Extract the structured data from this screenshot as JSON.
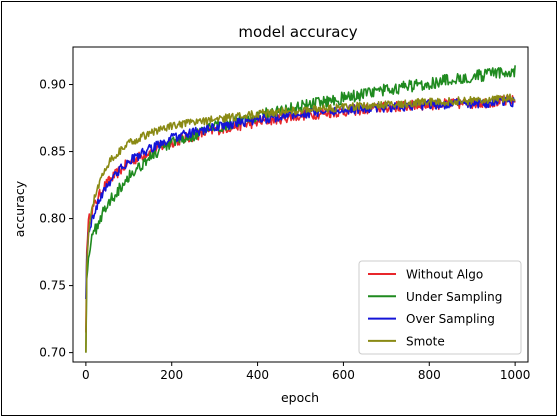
{
  "chart_data": {
    "type": "line",
    "title": "model accuracy",
    "xlabel": "epoch",
    "ylabel": "accuracy",
    "xlim": [
      -30,
      1030
    ],
    "ylim": [
      0.693,
      0.928
    ],
    "xticks": [
      0,
      200,
      400,
      600,
      800,
      1000
    ],
    "yticks": [
      0.7,
      0.75,
      0.8,
      0.85,
      0.9
    ],
    "xtick_labels": [
      "0",
      "200",
      "400",
      "600",
      "800",
      "1000"
    ],
    "ytick_labels": [
      "0.70",
      "0.75",
      "0.80",
      "0.85",
      "0.90"
    ],
    "legend_position": "lower-right",
    "grid": false,
    "series": [
      {
        "name": "Without Algo",
        "color": "#e8262b",
        "noise": 0.004,
        "x": [
          0,
          2,
          5,
          10,
          20,
          40,
          60,
          100,
          150,
          200,
          300,
          400,
          500,
          600,
          700,
          800,
          900,
          1000
        ],
        "y": [
          0.715,
          0.775,
          0.795,
          0.803,
          0.81,
          0.823,
          0.83,
          0.842,
          0.85,
          0.857,
          0.866,
          0.872,
          0.877,
          0.88,
          0.883,
          0.885,
          0.886,
          0.888
        ]
      },
      {
        "name": "Under Sampling",
        "color": "#1f8a1f",
        "noise": 0.0045,
        "x": [
          0,
          2,
          5,
          10,
          20,
          40,
          60,
          100,
          150,
          200,
          300,
          400,
          500,
          600,
          700,
          800,
          900,
          1000
        ],
        "y": [
          0.7,
          0.755,
          0.77,
          0.78,
          0.79,
          0.805,
          0.815,
          0.832,
          0.846,
          0.856,
          0.868,
          0.877,
          0.884,
          0.89,
          0.896,
          0.901,
          0.906,
          0.91
        ]
      },
      {
        "name": "Over Sampling",
        "color": "#1414d8",
        "noise": 0.0035,
        "x": [
          0,
          2,
          5,
          10,
          20,
          40,
          60,
          100,
          150,
          200,
          300,
          400,
          500,
          600,
          700,
          800,
          900,
          1000
        ],
        "y": [
          0.74,
          0.77,
          0.785,
          0.795,
          0.805,
          0.82,
          0.83,
          0.843,
          0.852,
          0.86,
          0.868,
          0.874,
          0.878,
          0.881,
          0.883,
          0.885,
          0.886,
          0.887
        ]
      },
      {
        "name": "Smote",
        "color": "#8a8a14",
        "noise": 0.003,
        "x": [
          0,
          2,
          5,
          10,
          20,
          40,
          60,
          100,
          150,
          200,
          300,
          400,
          500,
          600,
          700,
          800,
          900,
          1000
        ],
        "y": [
          0.7,
          0.765,
          0.785,
          0.8,
          0.815,
          0.835,
          0.845,
          0.856,
          0.864,
          0.869,
          0.874,
          0.878,
          0.881,
          0.883,
          0.885,
          0.887,
          0.888,
          0.89
        ]
      }
    ]
  }
}
